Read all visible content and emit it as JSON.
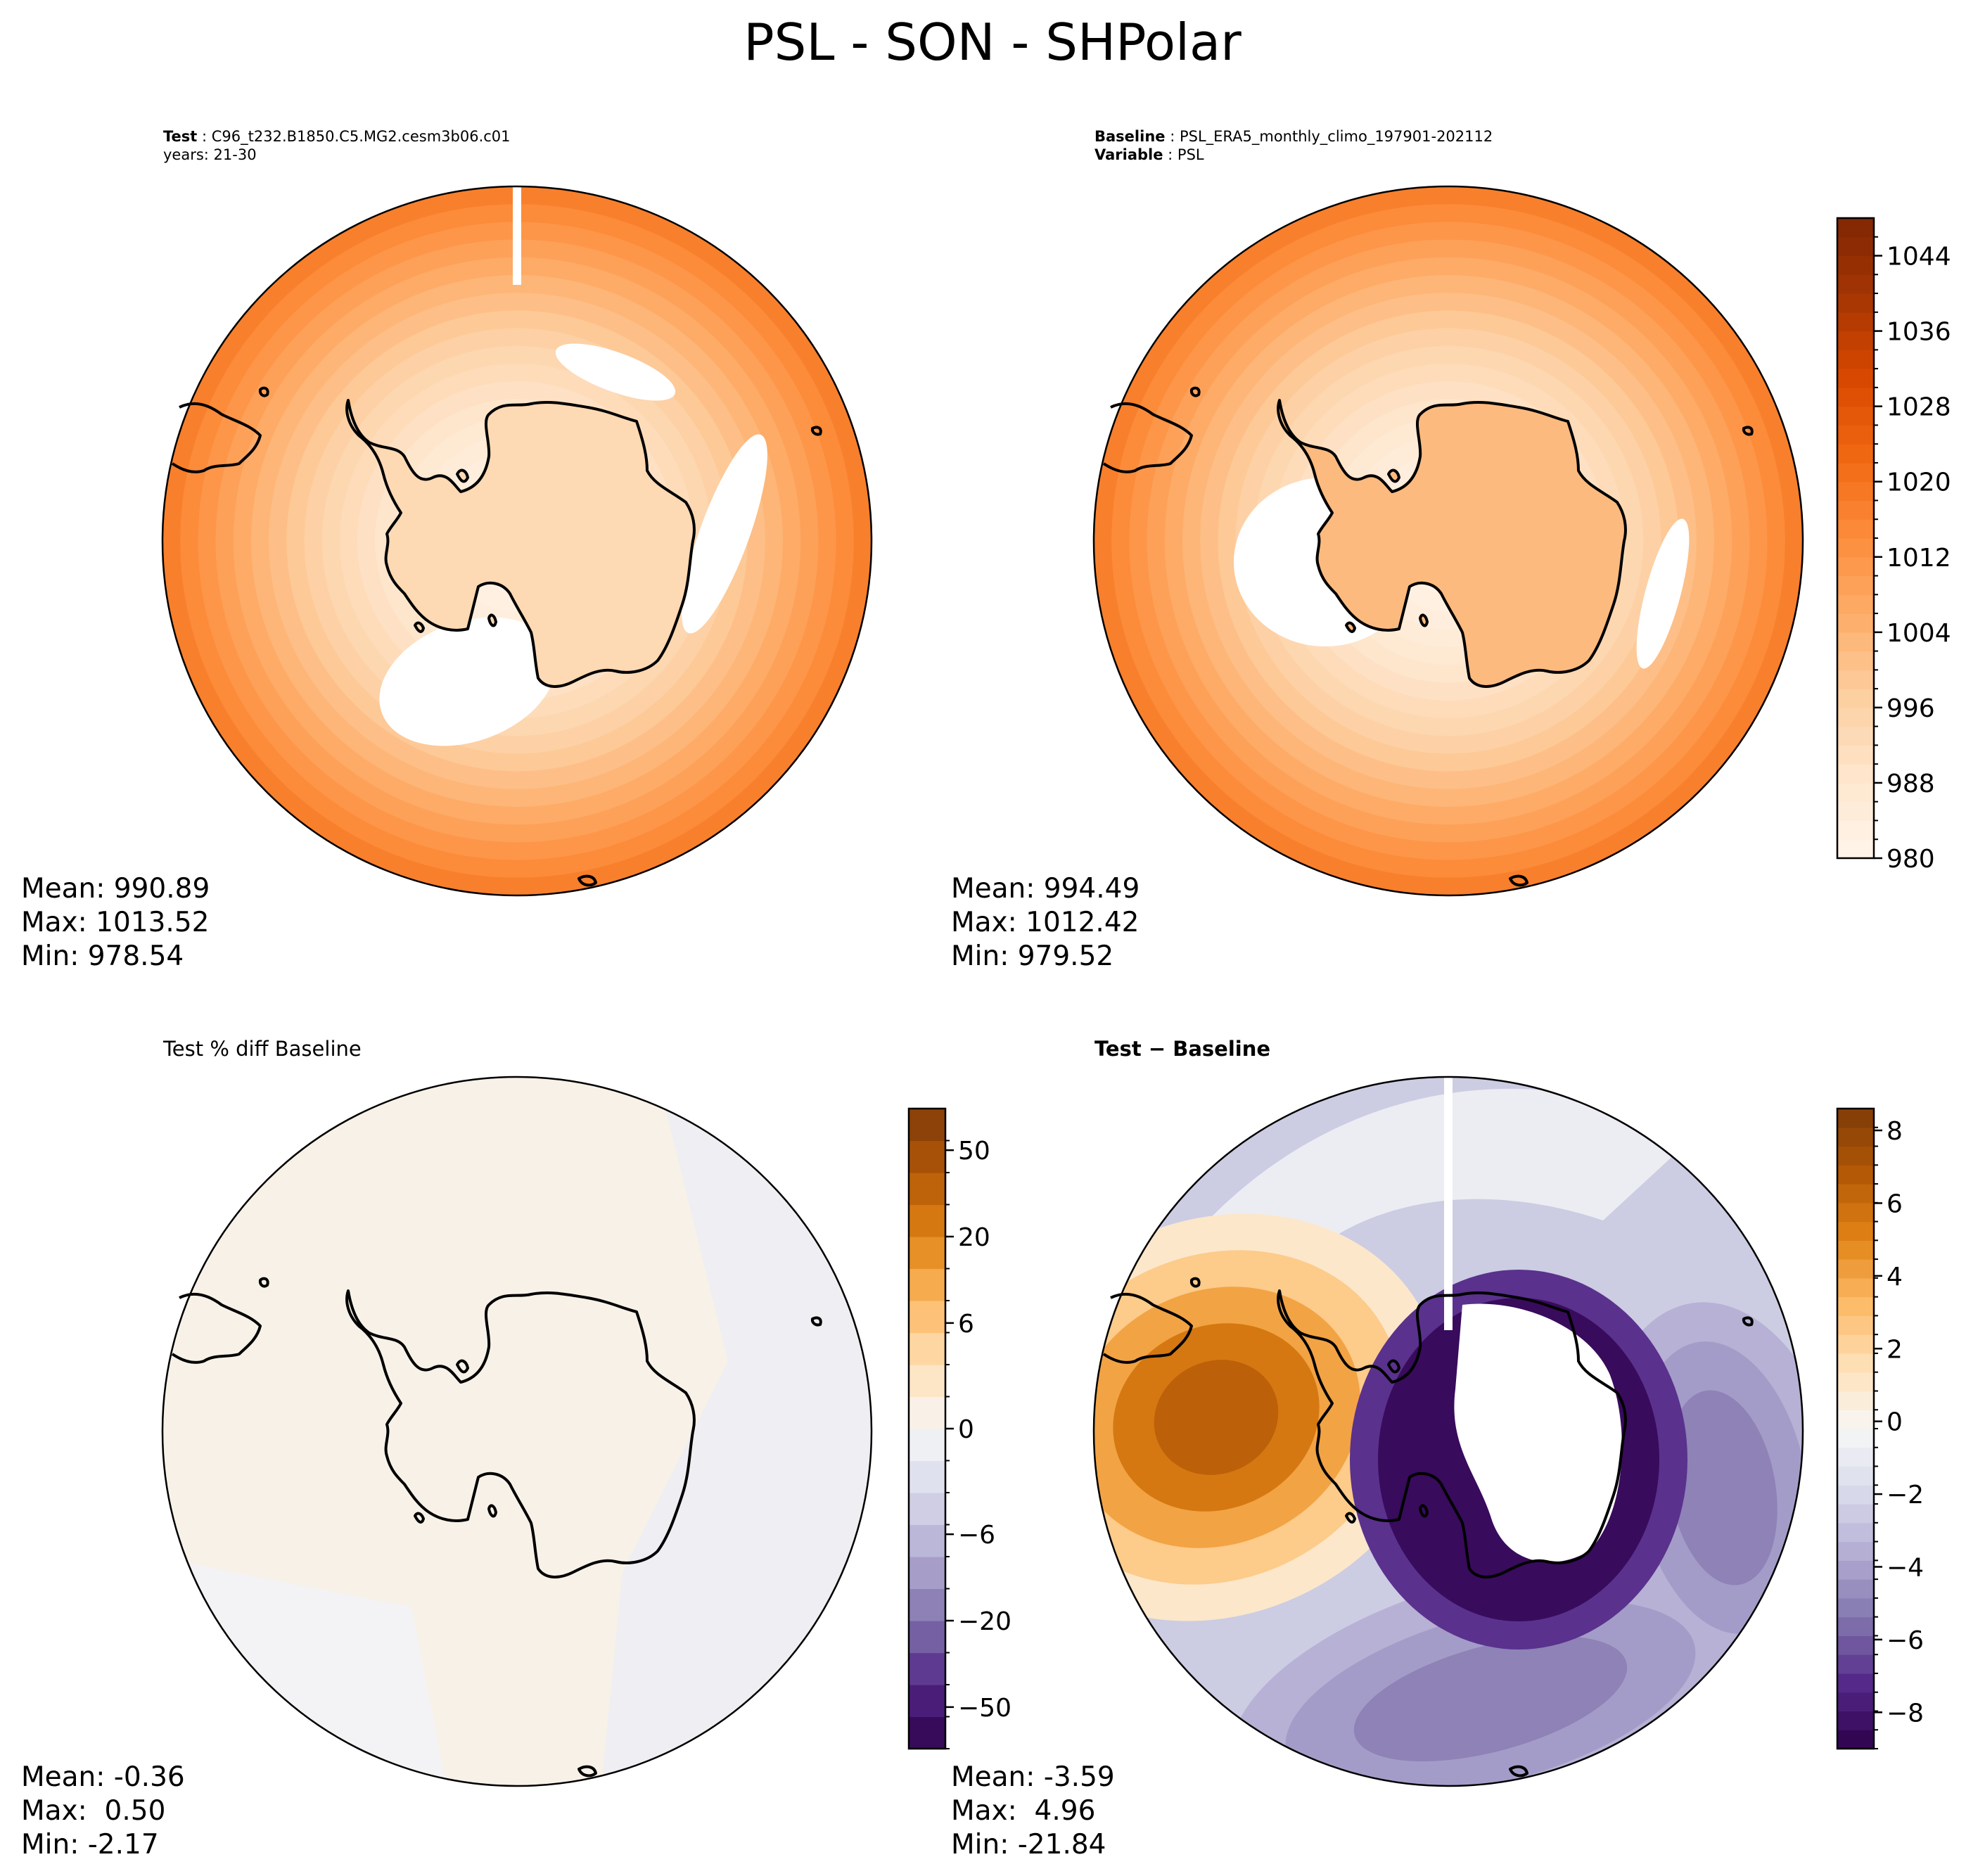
{
  "figure": {
    "title": "PSL - SON - SHPolar"
  },
  "colors": {
    "orange_scale": [
      "#fff5eb",
      "#fee6ce",
      "#fdd0a2",
      "#fdae6b",
      "#fd8d3c",
      "#f16913",
      "#d94801",
      "#a63603",
      "#7f2704"
    ],
    "diverging_scale": [
      "#2d004b",
      "#542788",
      "#8073ac",
      "#b2abd2",
      "#d8daeb",
      "#f7f7f7",
      "#fee0b6",
      "#fdb863",
      "#e08214",
      "#b35806",
      "#7f3b08"
    ],
    "coastline": "#000000"
  },
  "panels": {
    "test": {
      "case_label": "Test",
      "case_value": "C96_t232.B1850.C5.MG2.cesm3b06.c01",
      "years": "years: 21-30",
      "stats": {
        "mean": "Mean: 990.89",
        "max": "Max: 1013.52",
        "min": "Min: 978.54"
      }
    },
    "baseline": {
      "case_label": "Baseline",
      "case_value": "PSL_ERA5_monthly_climo_197901-202112",
      "var_label": "Variable",
      "var_value": "PSL",
      "stats": {
        "mean": "Mean: 994.49",
        "max": "Max: 1012.42",
        "min": "Min: 979.52"
      }
    },
    "pct_diff": {
      "title": "Test % diff Baseline",
      "stats": {
        "mean": "Mean: -0.36",
        "max": "Max:  0.50",
        "min": "Min: -2.17"
      }
    },
    "diff": {
      "title_a": "Test",
      "title_sep": " − ",
      "title_b": "Baseline",
      "stats": {
        "mean": "Mean: -3.59",
        "max": "Max:  4.96",
        "min": "Min: -21.84"
      }
    }
  },
  "chart_data": [
    {
      "type": "heatmap",
      "projection": "south-polar-stereographic",
      "panel": "Test",
      "colorbar": "shared with Baseline",
      "stats": {
        "mean": 990.89,
        "max": 1013.52,
        "min": 978.54
      }
    },
    {
      "type": "heatmap",
      "projection": "south-polar-stereographic",
      "panel": "Baseline",
      "colorbar": {
        "range": [
          980,
          1048
        ],
        "ticks": [
          980,
          988,
          996,
          1004,
          1012,
          1020,
          1028,
          1036,
          1044
        ],
        "tick_labels": [
          "980",
          "988",
          "996",
          "1004",
          "1012",
          "1020",
          "1028",
          "1036",
          "1044"
        ],
        "levels": 34,
        "colormap": "orange"
      },
      "stats": {
        "mean": 994.49,
        "max": 1012.42,
        "min": 979.52
      }
    },
    {
      "type": "heatmap",
      "projection": "south-polar-stereographic",
      "panel": "Test % diff Baseline",
      "colorbar": {
        "ticks": [
          -50,
          -20,
          -6,
          0,
          6,
          20,
          50
        ],
        "tick_labels": [
          "−50",
          "−20",
          "−6",
          "0",
          "6",
          "20",
          "50"
        ],
        "levels": 20,
        "colormap": "diverging purple-orange"
      },
      "stats": {
        "mean": -0.36,
        "max": 0.5,
        "min": -2.17
      }
    },
    {
      "type": "heatmap",
      "projection": "south-polar-stereographic",
      "panel": "Test − Baseline",
      "colorbar": {
        "range": [
          -9,
          8.6
        ],
        "ticks": [
          -8,
          -6,
          -4,
          -2,
          0,
          2,
          4,
          6,
          8
        ],
        "tick_labels": [
          "−8",
          "−6",
          "−4",
          "−2",
          "0",
          "2",
          "4",
          "6",
          "8"
        ],
        "levels": 34,
        "colormap": "diverging purple-orange"
      },
      "stats": {
        "mean": -3.59,
        "max": 4.96,
        "min": -21.84
      }
    }
  ]
}
